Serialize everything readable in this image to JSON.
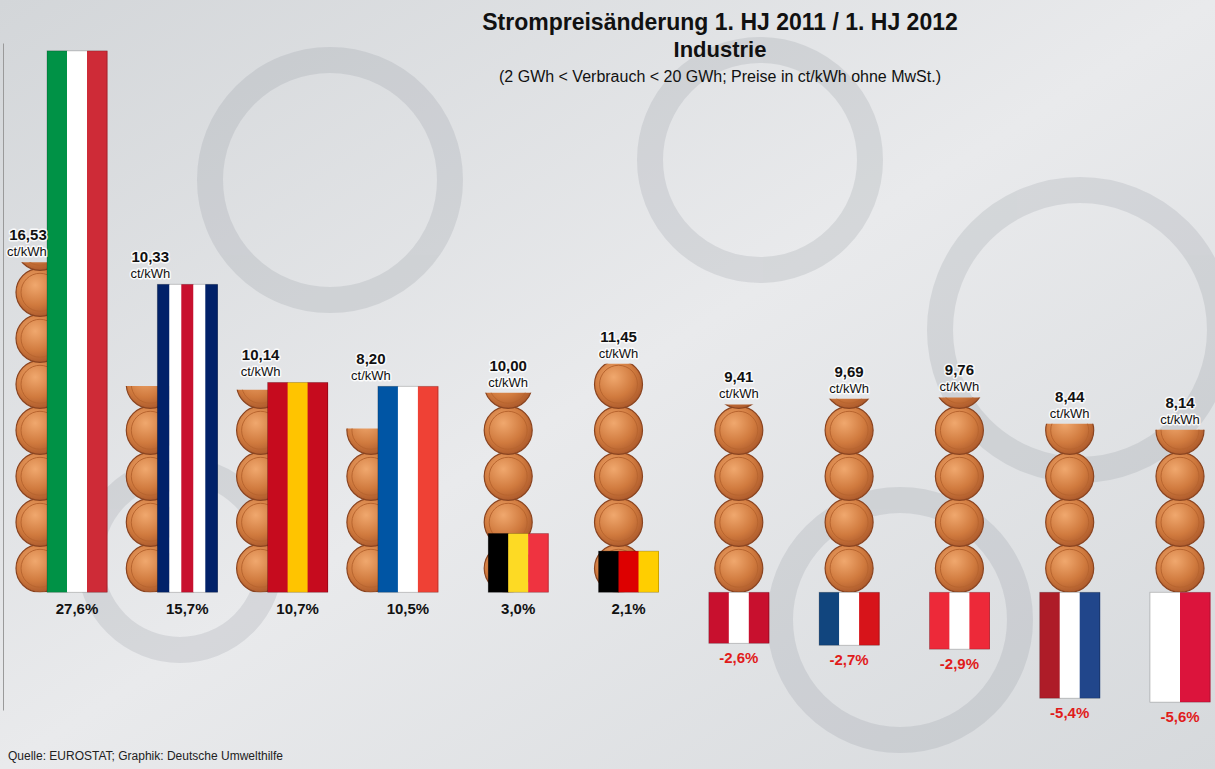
{
  "chart_data": {
    "type": "bar",
    "title": "Strompreisänderung 1. HJ 2011 / 1. HJ 2012",
    "subtitle": "Industrie",
    "annotations": [
      "(2 GWh < Verbrauch < 20 GWh; Preise in ct/kWh ohne MwSt.)"
    ],
    "source": "Quelle: EUROSTAT; Graphik: Deutsche Umwelthilfe",
    "categories": [
      null,
      null,
      null,
      null,
      null,
      null,
      null,
      null,
      null,
      null,
      null
    ],
    "values": [
      27.6,
      15.7,
      10.7,
      10.5,
      3.0,
      2.1,
      -2.6,
      -2.7,
      -2.9,
      -5.4,
      -5.6
    ],
    "value_labels": [
      "27,6%",
      "15,7%",
      "10,7%",
      "10,5%",
      "3,0%",
      "2,1%",
      "-2,6%",
      "-2,7%",
      "-2,9%",
      "-5,4%",
      "-5,6%"
    ],
    "colors": [
      [
        "#009246",
        "#ffffff",
        "#ce2b37"
      ],
      [
        "#012169",
        "#ffffff",
        "#c8102e",
        "#ffffff",
        "#012169"
      ],
      [
        "#c60b1e",
        "#ffc400",
        "#c60b1e"
      ],
      [
        "#0055a4",
        "#ffffff",
        "#ef4135"
      ],
      [
        "#000000",
        "#fdda24",
        "#ef3340"
      ],
      [
        "#000000",
        "#dd0000",
        "#ffce00"
      ],
      [
        "#c8102e",
        "#ffffff",
        "#c8102e"
      ],
      [
        "#11457e",
        "#ffffff",
        "#d7141a"
      ],
      [
        "#ed2939",
        "#ffffff",
        "#ed2939"
      ],
      [
        "#ae1c28",
        "#ffffff",
        "#21468b"
      ],
      [
        "#ffffff",
        "#dc143c"
      ]
    ],
    "prices": [
      16.53,
      10.33,
      10.14,
      8.2,
      10.0,
      11.45,
      9.41,
      9.69,
      9.76,
      8.44,
      8.14
    ],
    "price_labels": [
      "16,53",
      "10,33",
      "10,14",
      "8,20",
      "10,00",
      "11,45",
      "9,41",
      "9,69",
      "9,76",
      "8,44",
      "8,14"
    ],
    "price_unit": "ct/kWh",
    "ylim": [
      -6,
      28
    ],
    "data_labels": true,
    "tick_labels": false,
    "grid": false
  }
}
